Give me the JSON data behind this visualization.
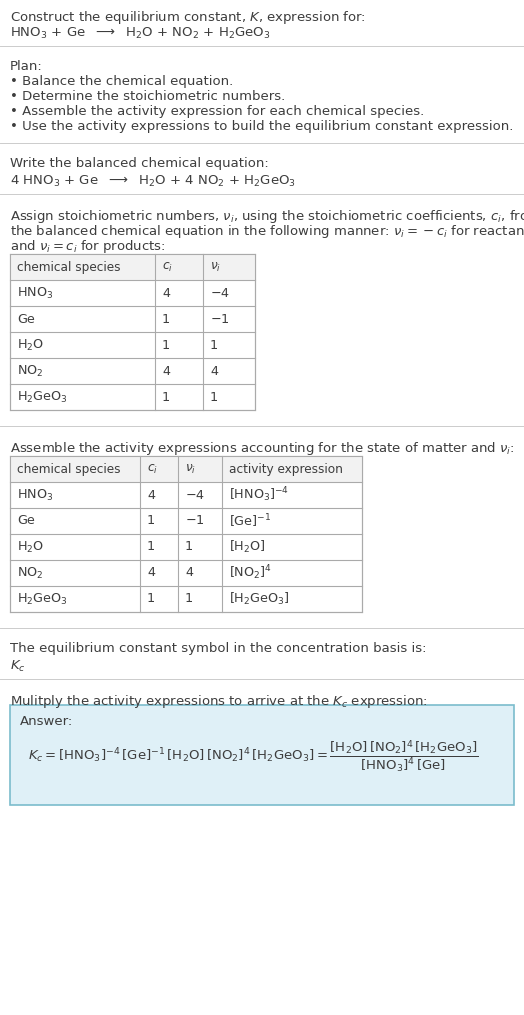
{
  "bg_color": "#ffffff",
  "text_color": "#3d3d3d",
  "table_header_color": "#f2f2f2",
  "table_border_color": "#aaaaaa",
  "answer_box_color": "#dff0f7",
  "answer_box_border": "#7bbccc",
  "separator_color": "#cccccc",
  "font_size": 9.5,
  "plan_bullets": [
    "• Balance the chemical equation.",
    "• Determine the stoichiometric numbers.",
    "• Assemble the activity expression for each chemical species.",
    "• Use the activity expressions to build the equilibrium constant expression."
  ],
  "table1_rows": [
    [
      "$\\mathrm{HNO_3}$",
      "4",
      "$-$4"
    ],
    [
      "Ge",
      "1",
      "$-$1"
    ],
    [
      "$\\mathrm{H_2O}$",
      "1",
      "1"
    ],
    [
      "$\\mathrm{NO_2}$",
      "4",
      "4"
    ],
    [
      "$\\mathrm{H_2GeO_3}$",
      "1",
      "1"
    ]
  ],
  "table2_rows": [
    [
      "$\\mathrm{HNO_3}$",
      "4",
      "$-$4",
      "$[\\mathrm{HNO_3}]^{-4}$"
    ],
    [
      "Ge",
      "1",
      "$-$1",
      "$[\\mathrm{Ge}]^{-1}$"
    ],
    [
      "$\\mathrm{H_2O}$",
      "1",
      "1",
      "$[\\mathrm{H_2O}]$"
    ],
    [
      "$\\mathrm{NO_2}$",
      "4",
      "4",
      "$[\\mathrm{NO_2}]^4$"
    ],
    [
      "$\\mathrm{H_2GeO_3}$",
      "1",
      "1",
      "$[\\mathrm{H_2GeO_3}]$"
    ]
  ]
}
